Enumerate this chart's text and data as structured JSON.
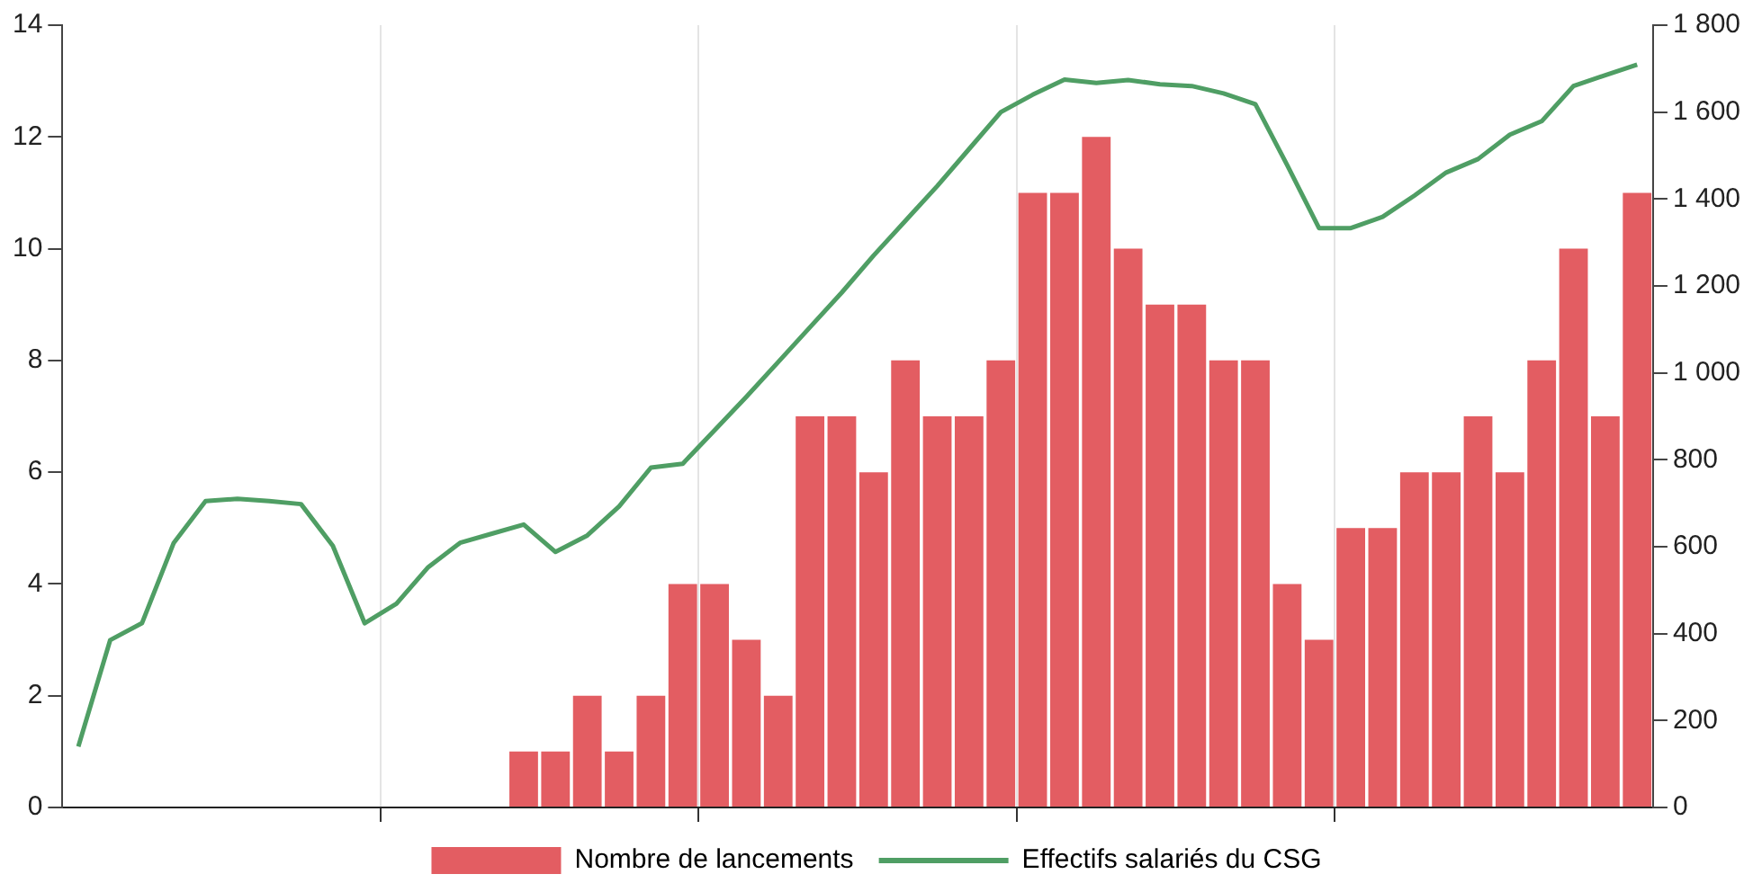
{
  "chart_data": {
    "type": "bar",
    "categories": [
      null,
      null,
      null,
      null,
      null,
      null,
      null,
      null,
      null,
      null,
      null,
      null,
      null,
      null,
      null,
      null,
      null,
      null,
      null,
      null,
      null,
      null,
      null,
      null,
      null,
      null,
      null,
      null,
      null,
      null,
      null,
      null,
      null,
      null,
      null,
      null,
      null,
      null,
      null,
      null,
      null,
      null,
      null,
      null,
      null,
      null,
      null,
      null,
      null,
      null
    ],
    "series": [
      {
        "name": "Nombre de lancements",
        "color": "#e35d62",
        "values": [
          null,
          null,
          null,
          null,
          null,
          null,
          null,
          null,
          null,
          null,
          null,
          null,
          null,
          null,
          1,
          1,
          2,
          1,
          2,
          4,
          4,
          3,
          2,
          7,
          7,
          6,
          8,
          7,
          7,
          8,
          11,
          11,
          12,
          10,
          9,
          9,
          8,
          8,
          4,
          3,
          5,
          5,
          6,
          6,
          7,
          6,
          8,
          10,
          7,
          11
        ]
      },
      {
        "name": "Effectifs salariés du CSG",
        "type": "line",
        "axis": "y2",
        "color": "#4f9e64",
        "values": [
          140,
          385,
          424,
          609,
          705,
          710,
          705,
          698,
          602,
          424,
          469,
          553,
          609,
          630,
          651,
          588,
          626,
          693,
          782,
          791,
          868,
          945,
          1025,
          1105,
          1185,
          1270,
          1350,
          1430,
          1515,
          1600,
          1640,
          1675,
          1667,
          1674,
          1664,
          1660,
          1643,
          1618,
          1478,
          1333,
          1333,
          1359,
          1408,
          1461,
          1492,
          1548,
          1579,
          1660,
          1685,
          1709
        ]
      }
    ],
    "ylim": [
      0,
      14
    ],
    "yticks": [
      0,
      2,
      4,
      6,
      8,
      10,
      12,
      14
    ],
    "y2lim": [
      0,
      1800
    ],
    "y2ticks": [
      0,
      {
        "value": 200,
        "label": "200"
      },
      {
        "value": 400,
        "label": "400"
      },
      {
        "value": 600,
        "label": "600"
      },
      {
        "value": 800,
        "label": "800"
      },
      {
        "value": 1000,
        "label": "1 000"
      },
      {
        "value": 1200,
        "label": "1 200"
      },
      {
        "value": 1400,
        "label": "1 400"
      },
      {
        "value": 1600,
        "label": "1 600"
      },
      {
        "value": 1800,
        "label": "1 800"
      }
    ],
    "grid": "x",
    "legend": "bottom",
    "marker": "none"
  }
}
